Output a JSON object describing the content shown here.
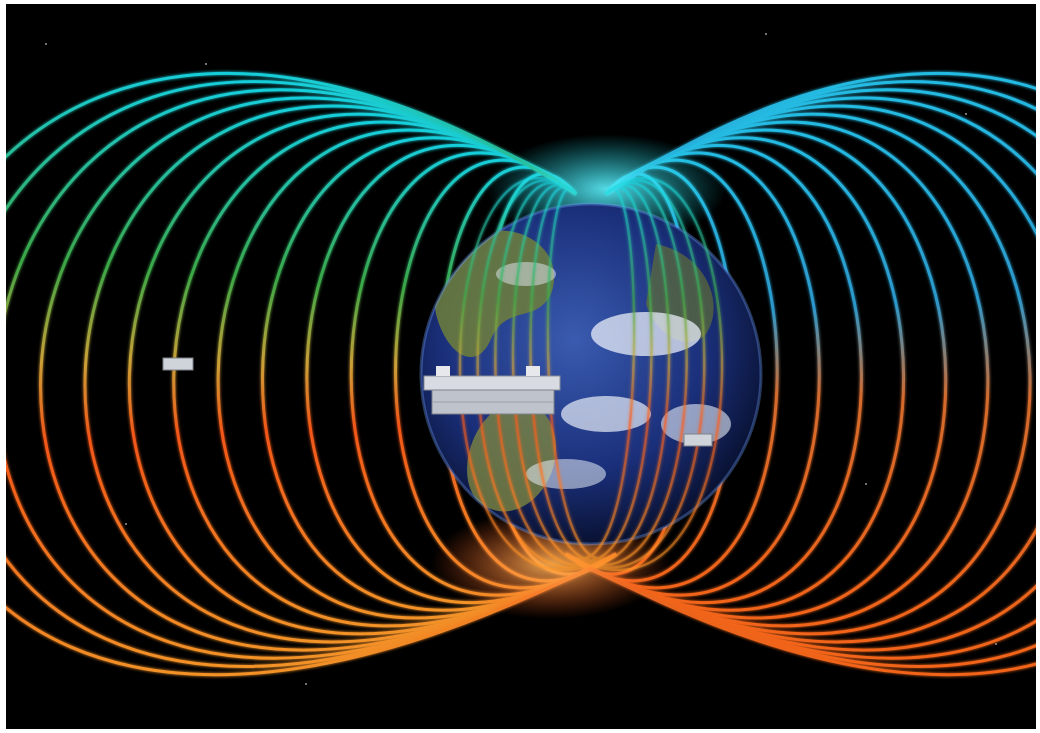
{
  "scene": {
    "subject": "earth-magnetosphere-illustration",
    "colors": {
      "space": "#000000",
      "north_field": "#19d9e6",
      "mid_field": "#3fb04a",
      "south_field": "#ff5a1a",
      "hot_field": "#ff9a2a",
      "ocean": "#1a2f7a",
      "land": "#6f7f3a",
      "cloud": "#e8eef8",
      "satellite": "#cfd3da"
    },
    "icons": [
      "earth-globe",
      "satellite",
      "small-satellite"
    ]
  }
}
